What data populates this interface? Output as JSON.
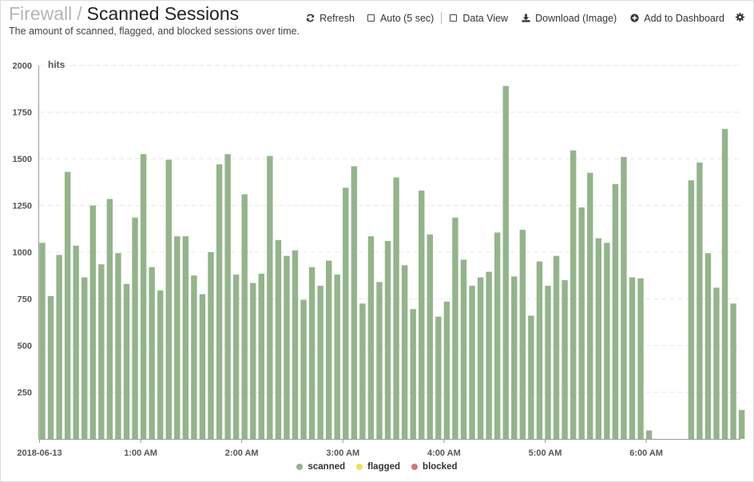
{
  "header": {
    "parent": "Firewall",
    "separator": "/",
    "title": "Scanned Sessions",
    "description": "The amount of scanned, flagged, and blocked sessions over time."
  },
  "toolbar": {
    "refresh": "Refresh",
    "auto": "Auto (5 sec)",
    "data_view": "Data View",
    "download": "Download (Image)",
    "add_dashboard": "Add to Dashboard",
    "icons": [
      "refresh-icon",
      "checkbox-icon",
      "checkbox-icon",
      "download-icon",
      "plus-circle-icon",
      "gear-icon"
    ]
  },
  "colors": {
    "scanned": "#94b48c",
    "flagged": "#f2e15a",
    "blocked": "#c97b72",
    "grid": "#e8e8e8",
    "axis": "#9a9a9a"
  },
  "legend": [
    "scanned",
    "flagged",
    "blocked"
  ],
  "chart_data": {
    "type": "bar",
    "ylabel": "hits",
    "ylim": [
      0,
      2000
    ],
    "yticks": [
      250,
      500,
      750,
      1000,
      1250,
      1500,
      1750,
      2000
    ],
    "xticks": [
      "2018-06-13",
      "1:00 AM",
      "2:00 AM",
      "3:00 AM",
      "4:00 AM",
      "5:00 AM",
      "6:00 AM"
    ],
    "x_start": "00:00",
    "bin_minutes": 5,
    "grid": true,
    "legend_position": "bottom",
    "series": [
      {
        "name": "scanned",
        "values": [
          1050,
          765,
          985,
          1430,
          1035,
          865,
          1250,
          935,
          1285,
          995,
          830,
          1185,
          1525,
          920,
          795,
          1495,
          1085,
          1085,
          875,
          775,
          1000,
          1470,
          1525,
          880,
          1310,
          835,
          885,
          1515,
          1065,
          980,
          1010,
          745,
          920,
          820,
          955,
          880,
          1345,
          1460,
          725,
          1085,
          840,
          1060,
          1400,
          930,
          695,
          1330,
          1095,
          655,
          735,
          1185,
          960,
          820,
          865,
          895,
          1105,
          1890,
          870,
          1120,
          660,
          950,
          820,
          980,
          850,
          1545,
          1240,
          1425,
          1075,
          1050,
          1365,
          1510,
          865,
          860,
          45,
          0,
          0,
          0,
          0,
          1385,
          1480,
          995,
          810,
          1660,
          725,
          155
        ]
      },
      {
        "name": "flagged",
        "values": []
      },
      {
        "name": "blocked",
        "values": []
      }
    ]
  }
}
